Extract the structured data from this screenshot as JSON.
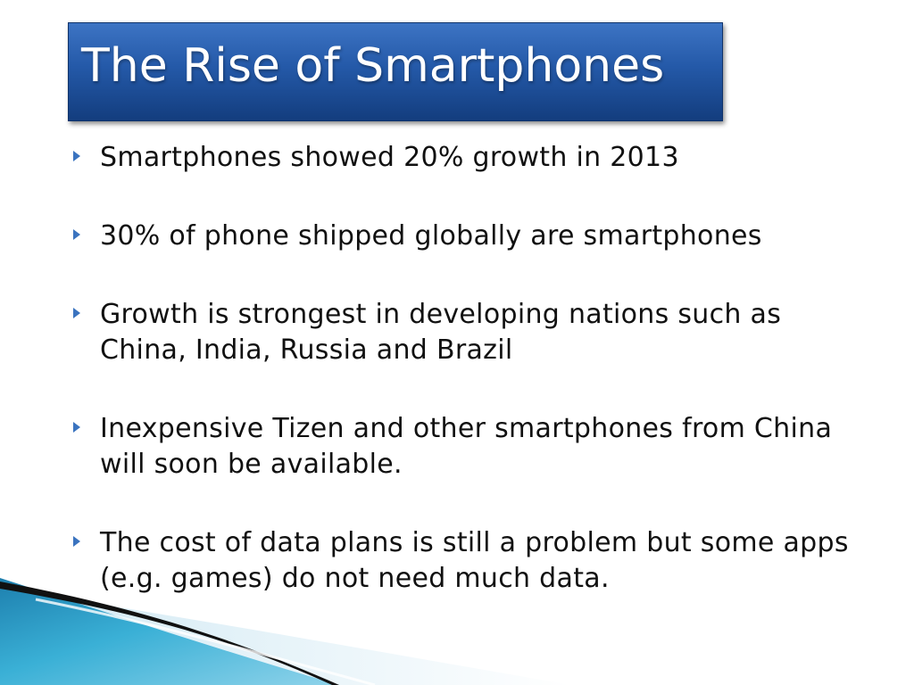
{
  "slide": {
    "title": "The Rise of Smartphones",
    "bullets": [
      {
        "text": "Smartphones showed 20% growth in 2013"
      },
      {
        "text": "30% of phone shipped globally are smartphones"
      },
      {
        "text": "Growth is strongest in developing nations such as China, India, Russia and Brazil"
      },
      {
        "text": "Inexpensive Tizen and other smartphones from China will soon be available."
      },
      {
        "text": "The cost of data plans is still a problem but some apps (e.g. games) do not need much data."
      }
    ]
  },
  "colors": {
    "title_bar": "#2459a8",
    "bullet_marker": "#3a73bf",
    "wave_teal": "#2f9fc4",
    "wave_dark": "#111111"
  }
}
